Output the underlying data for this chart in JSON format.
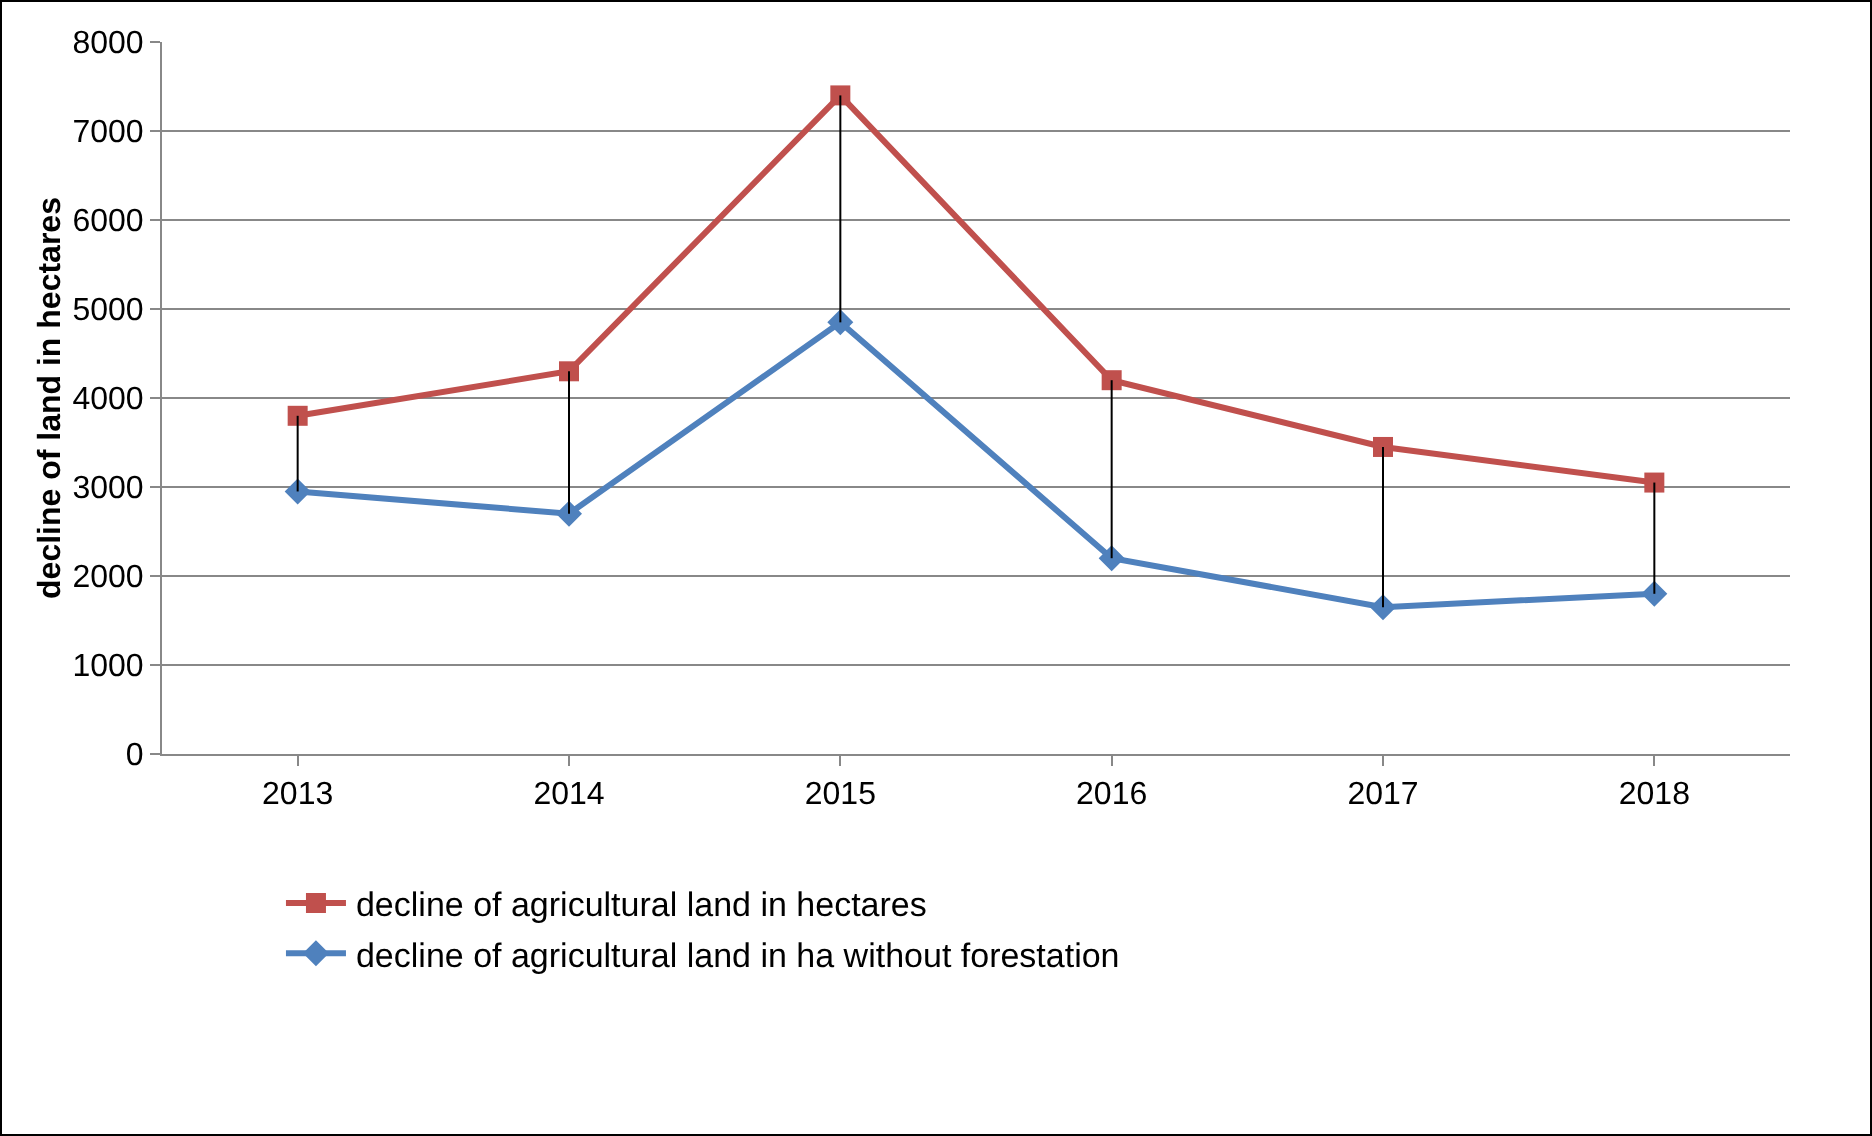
{
  "chart_data": {
    "type": "line",
    "ylabel": "decline of land in hectares",
    "categories": [
      "2013",
      "2014",
      "2015",
      "2016",
      "2017",
      "2018"
    ],
    "series": [
      {
        "name": "decline of agricultural land in hectares",
        "color": "#c0504d",
        "marker": "square",
        "values": [
          3800,
          4300,
          7400,
          4200,
          3450,
          3050
        ]
      },
      {
        "name": "decline of agricultural land in ha without forestation",
        "color": "#4f81bd",
        "marker": "diamond",
        "values": [
          2950,
          2700,
          4850,
          2200,
          1650,
          1800
        ],
        "errors": [
          [
            2950,
            3800
          ],
          [
            2700,
            4300
          ],
          [
            4850,
            7400
          ],
          [
            2200,
            4200
          ],
          [
            1650,
            3450
          ],
          [
            1800,
            3050
          ]
        ]
      }
    ],
    "ylim": [
      0,
      8000
    ],
    "yticks": [
      0,
      1000,
      2000,
      3000,
      4000,
      5000,
      6000,
      7000,
      8000
    ],
    "grid": "y",
    "legend": "bottom",
    "line_style": "solid"
  }
}
